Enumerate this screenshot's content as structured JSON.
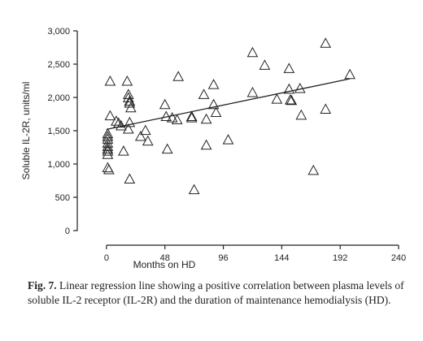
{
  "chart_data": {
    "type": "scatter",
    "title": "",
    "xlabel": "Months on HD",
    "ylabel": "Soluble IL-2R, units/ml",
    "xlim": [
      -24,
      240
    ],
    "ylim": [
      0,
      3000
    ],
    "x_ticks": [
      0,
      48,
      96,
      144,
      192,
      240
    ],
    "x_tick_labels": [
      "0",
      "48",
      "96",
      "144",
      "192",
      "240"
    ],
    "y_ticks": [
      0,
      500,
      1000,
      1500,
      2000,
      2500,
      3000
    ],
    "y_tick_labels": [
      "0",
      "500",
      "1,000",
      "1,500",
      "2,000",
      "2,500",
      "3,000"
    ],
    "grid": false,
    "marker": "open-triangle",
    "points": [
      [
        3,
        2250
      ],
      [
        3,
        1730
      ],
      [
        1,
        1460
      ],
      [
        1,
        1420
      ],
      [
        1,
        1380
      ],
      [
        1,
        1320
      ],
      [
        1,
        1270
      ],
      [
        1,
        1230
      ],
      [
        1,
        1200
      ],
      [
        1,
        1150
      ],
      [
        1,
        950
      ],
      [
        2,
        920
      ],
      [
        8,
        1650
      ],
      [
        10,
        1620
      ],
      [
        12,
        1580
      ],
      [
        14,
        1200
      ],
      [
        17,
        2250
      ],
      [
        18,
        2050
      ],
      [
        18,
        2000
      ],
      [
        19,
        1950
      ],
      [
        19,
        1920
      ],
      [
        20,
        1850
      ],
      [
        19,
        1630
      ],
      [
        18,
        1530
      ],
      [
        19,
        780
      ],
      [
        28,
        1420
      ],
      [
        32,
        1510
      ],
      [
        34,
        1350
      ],
      [
        48,
        1900
      ],
      [
        49,
        1720
      ],
      [
        50,
        1230
      ],
      [
        54,
        1700
      ],
      [
        59,
        2320
      ],
      [
        58,
        1670
      ],
      [
        70,
        1720
      ],
      [
        70,
        1700
      ],
      [
        72,
        620
      ],
      [
        80,
        2050
      ],
      [
        82,
        1680
      ],
      [
        82,
        1290
      ],
      [
        88,
        2200
      ],
      [
        88,
        1900
      ],
      [
        90,
        1780
      ],
      [
        100,
        1370
      ],
      [
        120,
        2680
      ],
      [
        120,
        2080
      ],
      [
        130,
        2490
      ],
      [
        140,
        1980
      ],
      [
        150,
        2440
      ],
      [
        150,
        2130
      ],
      [
        151,
        1970
      ],
      [
        152,
        1960
      ],
      [
        159,
        2140
      ],
      [
        160,
        1740
      ],
      [
        170,
        910
      ],
      [
        180,
        2820
      ],
      [
        180,
        1830
      ],
      [
        200,
        2350
      ]
    ],
    "regression": {
      "x": [
        0,
        200
      ],
      "y": [
        1520,
        2280
      ]
    }
  },
  "caption": {
    "label": "Fig. 7.",
    "text": "Linear regression line showing a positive correlation between plasma levels of soluble IL-2 receptor (IL-2R) and the duration of maintenance hemodialysis (HD)."
  }
}
